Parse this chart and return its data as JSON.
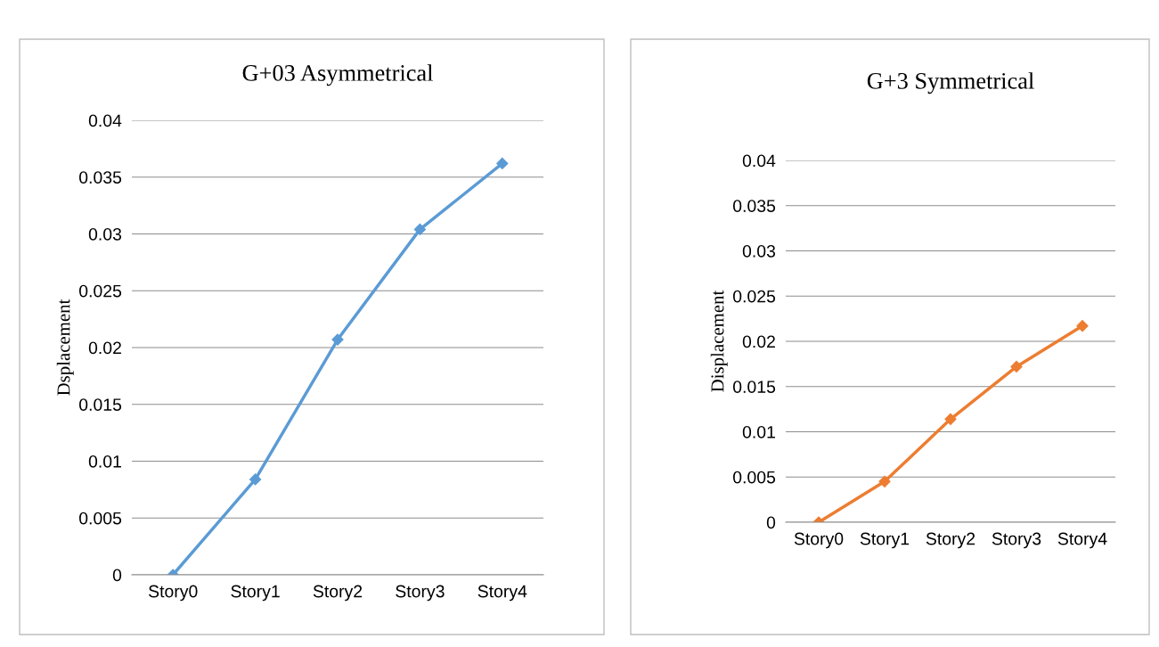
{
  "chart_data": [
    {
      "type": "line",
      "title": "G+03 Asymmetrical",
      "ylabel": "Dsplacement",
      "categories": [
        "Story0",
        "Story1",
        "Story2",
        "Story3",
        "Story4"
      ],
      "series": [
        {
          "color": "#5b9bd5",
          "values": [
            0,
            0.0084,
            0.0207,
            0.0304,
            0.0362
          ]
        }
      ],
      "ylim": [
        0,
        0.04
      ],
      "yticks": [
        0,
        0.005,
        0.01,
        0.015,
        0.02,
        0.025,
        0.03,
        0.035,
        0.04
      ],
      "grid": "y",
      "marker": "diamond",
      "line_style": "solid"
    },
    {
      "type": "line",
      "title": "G+3 Symmetrical",
      "ylabel": "Displacement",
      "categories": [
        "Story0",
        "Story1",
        "Story2",
        "Story3",
        "Story4"
      ],
      "series": [
        {
          "color": "#ed7d31",
          "values": [
            0,
            0.0045,
            0.0114,
            0.0172,
            0.0217
          ]
        }
      ],
      "ylim": [
        0,
        0.04
      ],
      "yticks": [
        0,
        0.005,
        0.01,
        0.015,
        0.02,
        0.025,
        0.03,
        0.035,
        0.04
      ],
      "grid": "y",
      "marker": "diamond",
      "line_style": "solid"
    }
  ]
}
